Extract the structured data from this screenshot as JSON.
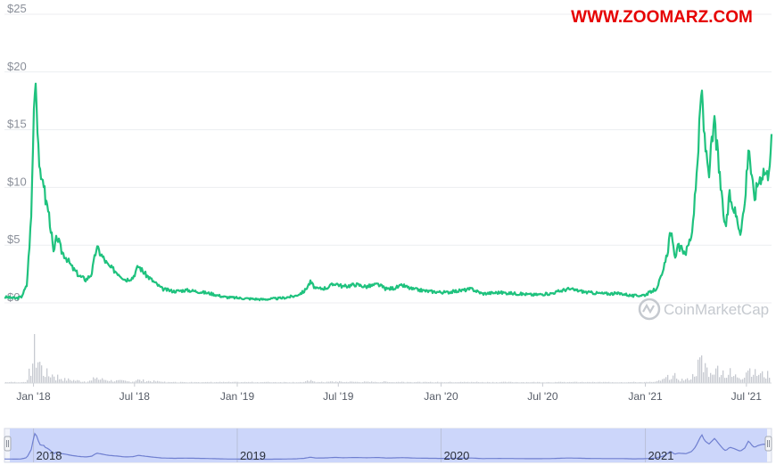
{
  "watermark": "WWW.ZOOMARZ.COM",
  "brand": "CoinMarketCap",
  "colors": {
    "price_line": "#1fc27e",
    "volume": "#c7cad1",
    "navigator_bg": "#ccd6fa",
    "navigator_line": "#6f7fd0",
    "grid": "#eceef1"
  },
  "chart_data": {
    "type": "line",
    "ylim": [
      0,
      25
    ],
    "y_ticks": [
      "$0",
      "$5",
      "$10",
      "$15",
      "$20",
      "$25"
    ],
    "x_ticks": [
      "Jan '18",
      "Jul '18",
      "Jan '19",
      "Jul '19",
      "Jan '20",
      "Jul '20",
      "Jan '21",
      "Jul '21"
    ],
    "navigator_labels": [
      "2018",
      "2019",
      "2020",
      "2021"
    ],
    "series": [
      {
        "points": [
          [
            "2017-11-10",
            0.5
          ],
          [
            "2017-12-01",
            0.4
          ],
          [
            "2017-12-10",
            0.5
          ],
          [
            "2017-12-20",
            1.5
          ],
          [
            "2017-12-28",
            7.5
          ],
          [
            "2018-01-01",
            15.5
          ],
          [
            "2018-01-04",
            20.3
          ],
          [
            "2018-01-07",
            17.0
          ],
          [
            "2018-01-10",
            13.5
          ],
          [
            "2018-01-14",
            10.0
          ],
          [
            "2018-01-18",
            11.2
          ],
          [
            "2018-01-22",
            9.0
          ],
          [
            "2018-01-27",
            8.2
          ],
          [
            "2018-02-01",
            6.5
          ],
          [
            "2018-02-06",
            4.2
          ],
          [
            "2018-02-12",
            5.8
          ],
          [
            "2018-02-20",
            4.5
          ],
          [
            "2018-03-01",
            3.9
          ],
          [
            "2018-03-12",
            3.0
          ],
          [
            "2018-03-25",
            2.3
          ],
          [
            "2018-04-05",
            2.0
          ],
          [
            "2018-04-15",
            2.5
          ],
          [
            "2018-04-24",
            4.8
          ],
          [
            "2018-05-02",
            4.2
          ],
          [
            "2018-05-15",
            3.2
          ],
          [
            "2018-06-01",
            2.6
          ],
          [
            "2018-06-15",
            2.0
          ],
          [
            "2018-06-28",
            2.2
          ],
          [
            "2018-07-08",
            3.2
          ],
          [
            "2018-07-20",
            2.5
          ],
          [
            "2018-08-05",
            1.8
          ],
          [
            "2018-08-20",
            1.2
          ],
          [
            "2018-09-10",
            1.0
          ],
          [
            "2018-10-01",
            1.1
          ],
          [
            "2018-10-20",
            1.0
          ],
          [
            "2018-11-15",
            0.8
          ],
          [
            "2018-12-10",
            0.5
          ],
          [
            "2019-01-10",
            0.4
          ],
          [
            "2019-02-15",
            0.3
          ],
          [
            "2019-03-20",
            0.4
          ],
          [
            "2019-04-15",
            0.6
          ],
          [
            "2019-05-01",
            1.0
          ],
          [
            "2019-05-12",
            1.8
          ],
          [
            "2019-05-22",
            1.2
          ],
          [
            "2019-06-10",
            1.3
          ],
          [
            "2019-06-26",
            1.7
          ],
          [
            "2019-07-10",
            1.4
          ],
          [
            "2019-08-01",
            1.6
          ],
          [
            "2019-08-20",
            1.4
          ],
          [
            "2019-09-10",
            1.6
          ],
          [
            "2019-09-25",
            1.2
          ],
          [
            "2019-10-10",
            1.3
          ],
          [
            "2019-10-25",
            1.5
          ],
          [
            "2019-11-10",
            1.2
          ],
          [
            "2019-12-10",
            1.0
          ],
          [
            "2020-01-10",
            0.9
          ],
          [
            "2020-02-10",
            1.1
          ],
          [
            "2020-02-25",
            1.2
          ],
          [
            "2020-03-15",
            0.8
          ],
          [
            "2020-04-15",
            0.9
          ],
          [
            "2020-05-15",
            0.8
          ],
          [
            "2020-06-15",
            0.7
          ],
          [
            "2020-07-15",
            0.8
          ],
          [
            "2020-08-15",
            1.2
          ],
          [
            "2020-08-30",
            1.1
          ],
          [
            "2020-09-20",
            0.9
          ],
          [
            "2020-10-20",
            0.8
          ],
          [
            "2020-11-20",
            0.8
          ],
          [
            "2020-12-10",
            0.6
          ],
          [
            "2021-01-01",
            0.7
          ],
          [
            "2021-01-20",
            1.2
          ],
          [
            "2021-02-01",
            2.5
          ],
          [
            "2021-02-10",
            4.5
          ],
          [
            "2021-02-15",
            6.4
          ],
          [
            "2021-02-22",
            4.0
          ],
          [
            "2021-03-01",
            4.8
          ],
          [
            "2021-03-15",
            4.4
          ],
          [
            "2021-03-25",
            6.0
          ],
          [
            "2021-04-01",
            9.5
          ],
          [
            "2021-04-07",
            14.5
          ],
          [
            "2021-04-12",
            18.6
          ],
          [
            "2021-04-17",
            14.0
          ],
          [
            "2021-04-25",
            11.5
          ],
          [
            "2021-05-05",
            15.7
          ],
          [
            "2021-05-12",
            12.0
          ],
          [
            "2021-05-20",
            8.0
          ],
          [
            "2021-05-25",
            6.5
          ],
          [
            "2021-06-01",
            9.2
          ],
          [
            "2021-06-10",
            8.0
          ],
          [
            "2021-06-20",
            6.2
          ],
          [
            "2021-06-28",
            8.5
          ],
          [
            "2021-07-05",
            14.0
          ],
          [
            "2021-07-10",
            11.0
          ],
          [
            "2021-07-15",
            9.0
          ],
          [
            "2021-07-22",
            10.5
          ],
          [
            "2021-08-01",
            11.5
          ],
          [
            "2021-08-08",
            11.0
          ],
          [
            "2021-08-15",
            14.0
          ]
        ]
      }
    ]
  }
}
